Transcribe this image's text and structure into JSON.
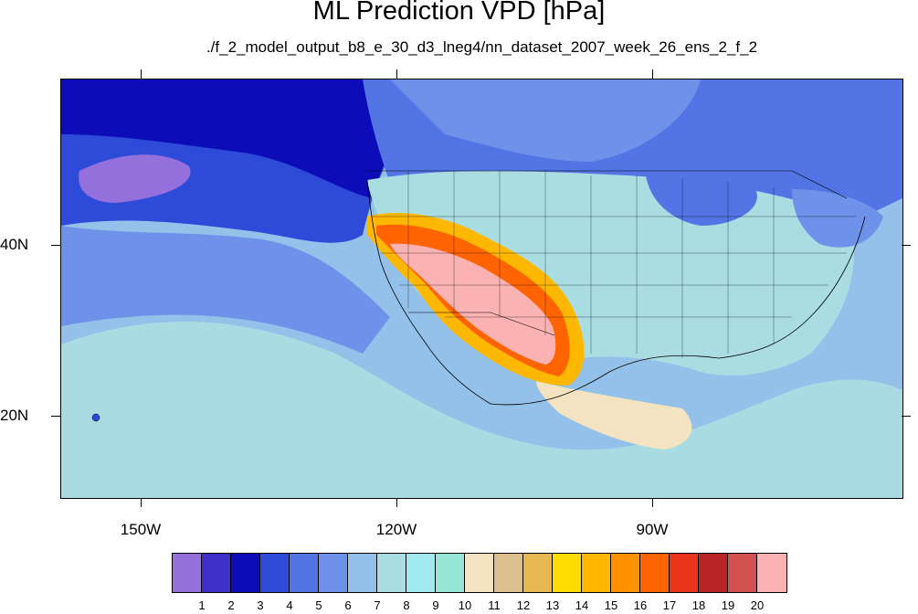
{
  "title": "ML Prediction VPD [hPa]",
  "subtitle": "./f_2_model_output_b8_e_30_d3_lneg4/nn_dataset_2007_week_26_ens_2_f_2",
  "lat_labels": [
    "40N",
    "20N"
  ],
  "lon_labels": [
    "150W",
    "120W",
    "90W"
  ],
  "colorbar": {
    "labels": [
      "1",
      "2",
      "3",
      "4",
      "5",
      "6",
      "7",
      "8",
      "9",
      "10",
      "11",
      "12",
      "13",
      "14",
      "15",
      "16",
      "17",
      "18",
      "19",
      "20"
    ],
    "colors": [
      "#9370db",
      "#3f2fc9",
      "#0c0cb8",
      "#2e4ad8",
      "#5274e4",
      "#6e92ea",
      "#93c1ea",
      "#aadde2",
      "#a2e8f0",
      "#96e6d8",
      "#f3e3c0",
      "#ddbf8f",
      "#e7b752",
      "#ffdd00",
      "#ffb800",
      "#ff9200",
      "#ff6400",
      "#e8351b",
      "#b72525",
      "#d25252",
      "#fbb2b2"
    ]
  },
  "map_colors": {
    "ocean_far": "#93c1ea",
    "ocean_near": "#aadde2",
    "north_pacific": "#2e4ad8",
    "deep_north": "#0c0cb8",
    "violet": "#9370db",
    "canada": "#5274e4",
    "east_us": "#aadde2",
    "mid_blue": "#6e92ea",
    "southwest": "#fbb2b2",
    "hot_border": "#ff6400",
    "warm_border": "#ffb800",
    "tan": "#f3e3c0",
    "coast": "#000000"
  }
}
